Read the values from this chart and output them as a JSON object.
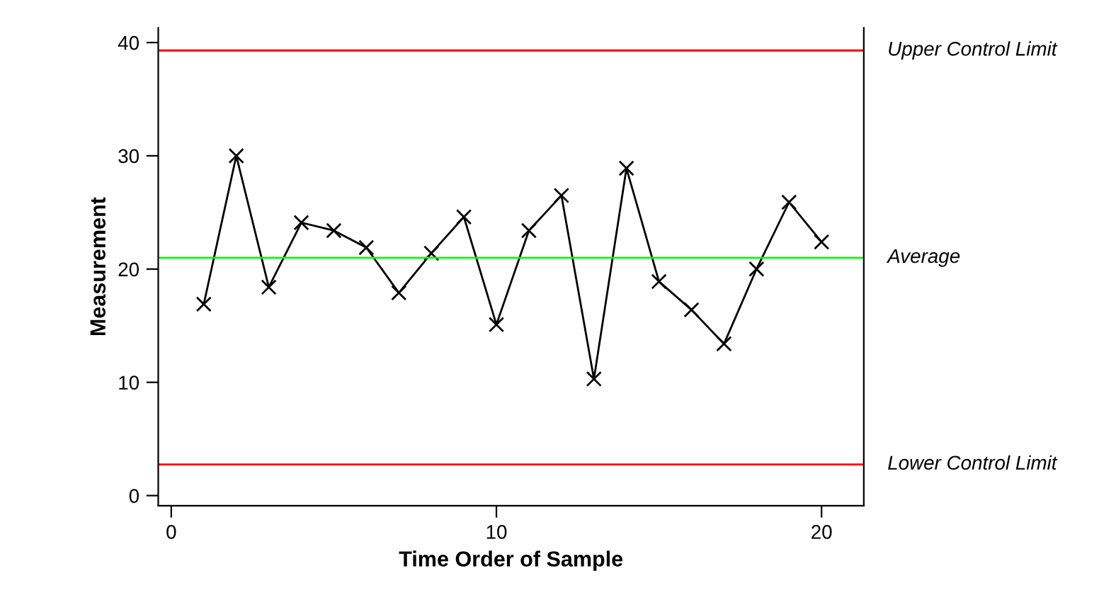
{
  "chart_data": {
    "type": "line",
    "xlabel": "Time Order of Sample",
    "ylabel": "Measurement",
    "x": [
      1,
      2,
      3,
      4,
      5,
      6,
      7,
      8,
      9,
      10,
      11,
      12,
      13,
      14,
      15,
      16,
      17,
      18,
      19,
      20
    ],
    "series": [
      {
        "color": "#000000",
        "values": [
          16.9,
          30.0,
          18.4,
          24.1,
          23.4,
          21.9,
          17.9,
          21.4,
          24.6,
          15.1,
          23.4,
          26.5,
          10.3,
          28.9,
          18.9,
          16.4,
          13.4,
          20.0,
          25.9,
          22.4
        ]
      }
    ],
    "marker": "cross",
    "xlim": [
      -0.4,
      21.3
    ],
    "xticks": [
      0,
      10,
      20
    ],
    "ylim": [
      -0.9,
      41.3
    ],
    "yticks": [
      0,
      10,
      20,
      30,
      40
    ],
    "grid": false,
    "ref_lines": [
      {
        "axis": "y",
        "value": 39.3,
        "label": "Upper Control Limit",
        "color": "#ff0000"
      },
      {
        "axis": "y",
        "value": 21.0,
        "label": "Average",
        "color": "#00ff00"
      },
      {
        "axis": "y",
        "value": 2.75,
        "label": "Lower Control Limit",
        "color": "#ff0000"
      }
    ]
  }
}
